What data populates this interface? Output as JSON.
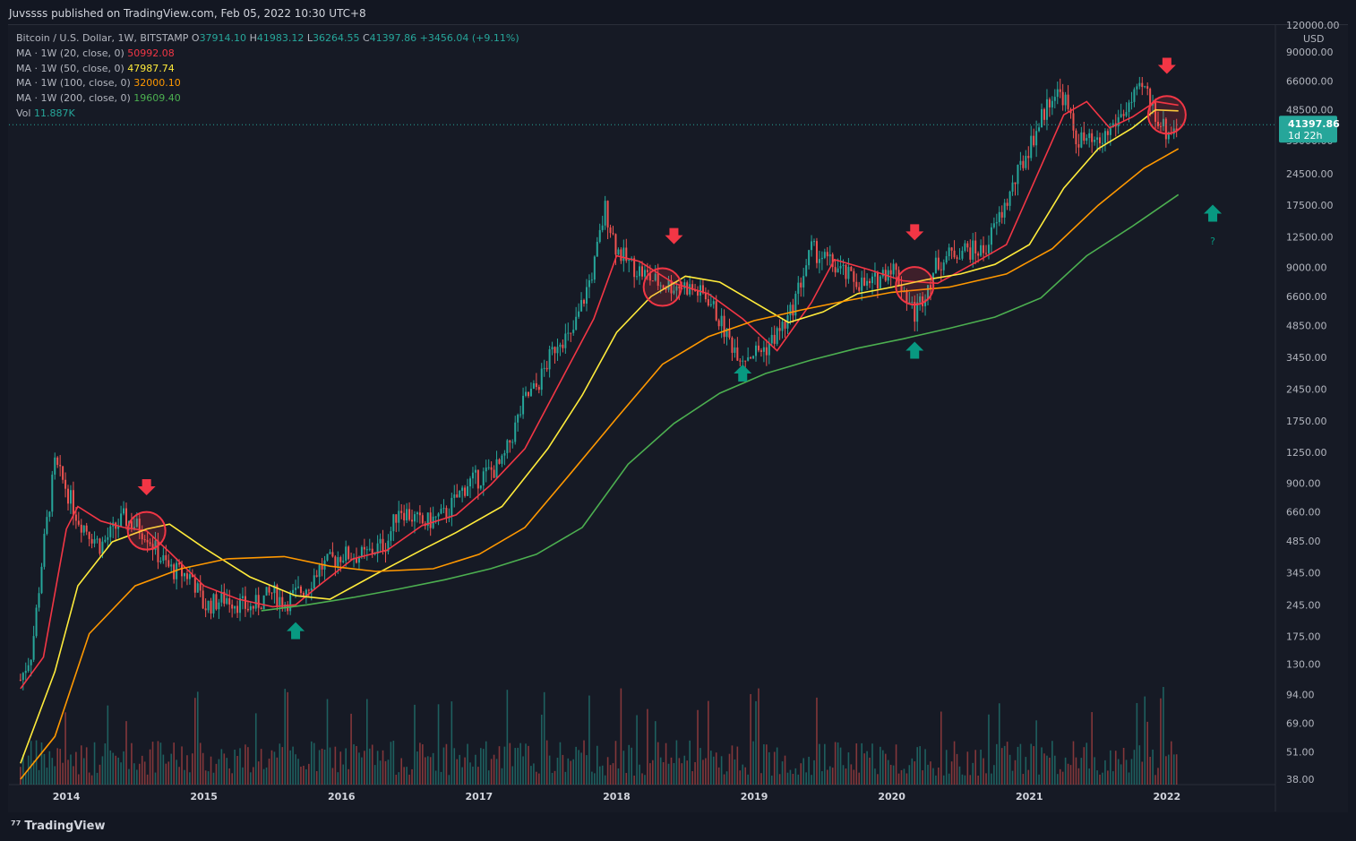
{
  "header": {
    "published": "Juvssss published on TradingView.com, Feb 05, 2022 10:30 UTC+8"
  },
  "footer": {
    "brand": "TradingView",
    "logo_icon": "tradingview-logo-icon"
  },
  "legend": {
    "symbol": "Bitcoin / U.S. Dollar, 1W, BITSTAMP",
    "ohlc": {
      "o_label": "O",
      "o": "37914.10",
      "h_label": "H",
      "h": "41983.12",
      "l_label": "L",
      "l": "36264.55",
      "c_label": "C",
      "c": "41397.86",
      "change": "+3456.04 (+9.11%)"
    },
    "ma20": {
      "label": "MA · 1W (20, close, 0)",
      "value": "50992.08",
      "color": "#f23645"
    },
    "ma50": {
      "label": "MA · 1W (50, close, 0)",
      "value": "47987.74",
      "color": "#ffeb3b"
    },
    "ma100": {
      "label": "MA · 1W (100, close, 0)",
      "value": "32000.10",
      "color": "#ff9800"
    },
    "ma200": {
      "label": "MA · 1W (200, close, 0)",
      "value": "19609.40",
      "color": "#4caf50"
    },
    "vol": {
      "label": "Vol",
      "value": "11.887K"
    }
  },
  "price_axis": {
    "currency": "USD",
    "last_price": "41397.86",
    "countdown": "1d 22h",
    "ticks": [
      "120000.00",
      "90000.00",
      "66000.00",
      "48500.00",
      "35000.00",
      "24500.00",
      "17500.00",
      "12500.00",
      "9000.00",
      "6600.00",
      "4850.00",
      "3450.00",
      "2450.00",
      "1750.00",
      "1250.00",
      "900.00",
      "660.00",
      "485.00",
      "345.00",
      "245.00",
      "175.00",
      "130.00",
      "94.00",
      "69.00",
      "51.00",
      "38.00"
    ]
  },
  "chart_data": {
    "type": "candlestick",
    "title": "Bitcoin / U.S. Dollar, 1W, BITSTAMP",
    "interval": "1W",
    "scale": "log",
    "ylim": [
      38,
      120000
    ],
    "xlim": [
      "2013-08",
      "2022-12"
    ],
    "x_tick_labels": [
      "2014",
      "2015",
      "2016",
      "2017",
      "2018",
      "2019",
      "2020",
      "2021",
      "2022"
    ],
    "grid": false,
    "up_color": "#26a69a",
    "down_color": "#ef5350",
    "price_path": [
      [
        "2013-09",
        110
      ],
      [
        "2013-10",
        150
      ],
      [
        "2013-11",
        450
      ],
      [
        "2013-12",
        1100
      ],
      [
        "2014-01",
        850
      ],
      [
        "2014-02",
        620
      ],
      [
        "2014-04",
        460
      ],
      [
        "2014-06",
        620
      ],
      [
        "2014-08",
        530
      ],
      [
        "2014-09",
        420
      ],
      [
        "2014-10",
        360
      ],
      [
        "2014-12",
        330
      ],
      [
        "2015-01",
        240
      ],
      [
        "2015-03",
        265
      ],
      [
        "2015-05",
        235
      ],
      [
        "2015-07",
        280
      ],
      [
        "2015-08",
        250
      ],
      [
        "2015-10",
        300
      ],
      [
        "2015-11",
        360
      ],
      [
        "2016-01",
        420
      ],
      [
        "2016-03",
        415
      ],
      [
        "2016-05",
        480
      ],
      [
        "2016-06",
        700
      ],
      [
        "2016-08",
        580
      ],
      [
        "2016-10",
        640
      ],
      [
        "2016-12",
        900
      ],
      [
        "2017-01",
        950
      ],
      [
        "2017-03",
        1100
      ],
      [
        "2017-05",
        2200
      ],
      [
        "2017-06",
        2500
      ],
      [
        "2017-08",
        4300
      ],
      [
        "2017-09",
        4200
      ],
      [
        "2017-11",
        9000
      ],
      [
        "2017-12",
        17000
      ],
      [
        "2018-01",
        11000
      ],
      [
        "2018-02",
        9500
      ],
      [
        "2018-04",
        8000
      ],
      [
        "2018-05",
        7500
      ],
      [
        "2018-07",
        7400
      ],
      [
        "2018-09",
        6500
      ],
      [
        "2018-11",
        4000
      ],
      [
        "2018-12",
        3500
      ],
      [
        "2019-02",
        3800
      ],
      [
        "2019-04",
        5200
      ],
      [
        "2019-06",
        11000
      ],
      [
        "2019-07",
        10000
      ],
      [
        "2019-09",
        8300
      ],
      [
        "2019-11",
        7300
      ],
      [
        "2020-01",
        9300
      ],
      [
        "2020-03",
        5500
      ],
      [
        "2020-05",
        9500
      ],
      [
        "2020-07",
        11000
      ],
      [
        "2020-09",
        10700
      ],
      [
        "2020-11",
        18000
      ],
      [
        "2021-01",
        33000
      ],
      [
        "2021-03",
        58000
      ],
      [
        "2021-04",
        57000
      ],
      [
        "2021-05",
        36000
      ],
      [
        "2021-07",
        33000
      ],
      [
        "2021-09",
        46000
      ],
      [
        "2021-11",
        62000
      ],
      [
        "2021-12",
        47000
      ],
      [
        "2022-01",
        38000
      ],
      [
        "2022-02",
        41397.86
      ]
    ],
    "series": [
      {
        "name": "MA · 1W (20, close, 0)",
        "color": "#f23645",
        "points": [
          [
            "2013-09",
            100
          ],
          [
            "2013-11",
            140
          ],
          [
            "2014-01",
            550
          ],
          [
            "2014-02",
            700
          ],
          [
            "2014-04",
            600
          ],
          [
            "2014-06",
            560
          ],
          [
            "2014-08",
            540
          ],
          [
            "2014-10",
            430
          ],
          [
            "2015-01",
            300
          ],
          [
            "2015-04",
            260
          ],
          [
            "2015-07",
            240
          ],
          [
            "2015-09",
            245
          ],
          [
            "2015-11",
            300
          ],
          [
            "2016-02",
            400
          ],
          [
            "2016-05",
            440
          ],
          [
            "2016-08",
            570
          ],
          [
            "2016-11",
            640
          ],
          [
            "2017-02",
            880
          ],
          [
            "2017-05",
            1300
          ],
          [
            "2017-08",
            2600
          ],
          [
            "2017-11",
            5200
          ],
          [
            "2018-01",
            10200
          ],
          [
            "2018-03",
            9600
          ],
          [
            "2018-06",
            7600
          ],
          [
            "2018-09",
            6800
          ],
          [
            "2018-12",
            5200
          ],
          [
            "2019-03",
            3700
          ],
          [
            "2019-06",
            6200
          ],
          [
            "2019-08",
            9800
          ],
          [
            "2019-11",
            8800
          ],
          [
            "2020-02",
            7800
          ],
          [
            "2020-05",
            7600
          ],
          [
            "2020-08",
            9300
          ],
          [
            "2020-11",
            11500
          ],
          [
            "2021-01",
            20000
          ],
          [
            "2021-04",
            46000
          ],
          [
            "2021-06",
            53000
          ],
          [
            "2021-08",
            40000
          ],
          [
            "2021-10",
            45000
          ],
          [
            "2021-12",
            53000
          ],
          [
            "2022-02",
            50992.08
          ]
        ]
      },
      {
        "name": "MA · 1W (50, close, 0)",
        "color": "#ffeb3b",
        "points": [
          [
            "2013-09",
            45
          ],
          [
            "2013-12",
            120
          ],
          [
            "2014-02",
            300
          ],
          [
            "2014-05",
            480
          ],
          [
            "2014-08",
            550
          ],
          [
            "2014-10",
            580
          ],
          [
            "2015-01",
            450
          ],
          [
            "2015-05",
            330
          ],
          [
            "2015-09",
            270
          ],
          [
            "2015-12",
            260
          ],
          [
            "2016-04",
            340
          ],
          [
            "2016-08",
            440
          ],
          [
            "2016-11",
            530
          ],
          [
            "2017-03",
            700
          ],
          [
            "2017-07",
            1300
          ],
          [
            "2017-10",
            2300
          ],
          [
            "2018-01",
            4500
          ],
          [
            "2018-04",
            6600
          ],
          [
            "2018-07",
            8200
          ],
          [
            "2018-10",
            7700
          ],
          [
            "2019-01",
            6200
          ],
          [
            "2019-04",
            5000
          ],
          [
            "2019-07",
            5600
          ],
          [
            "2019-10",
            6800
          ],
          [
            "2020-01",
            7300
          ],
          [
            "2020-04",
            7900
          ],
          [
            "2020-07",
            8400
          ],
          [
            "2020-10",
            9300
          ],
          [
            "2021-01",
            11500
          ],
          [
            "2021-04",
            21000
          ],
          [
            "2021-07",
            32000
          ],
          [
            "2021-10",
            40000
          ],
          [
            "2021-12",
            48500
          ],
          [
            "2022-02",
            47987.74
          ]
        ]
      },
      {
        "name": "MA · 1W (100, close, 0)",
        "color": "#ff9800",
        "points": [
          [
            "2013-09",
            38
          ],
          [
            "2013-12",
            60
          ],
          [
            "2014-03",
            180
          ],
          [
            "2014-07",
            300
          ],
          [
            "2014-11",
            360
          ],
          [
            "2015-03",
            400
          ],
          [
            "2015-08",
            410
          ],
          [
            "2015-12",
            370
          ],
          [
            "2016-04",
            350
          ],
          [
            "2016-09",
            360
          ],
          [
            "2017-01",
            420
          ],
          [
            "2017-05",
            560
          ],
          [
            "2017-09",
            1000
          ],
          [
            "2018-01",
            1800
          ],
          [
            "2018-05",
            3200
          ],
          [
            "2018-09",
            4300
          ],
          [
            "2019-01",
            5100
          ],
          [
            "2019-05",
            5700
          ],
          [
            "2019-09",
            6300
          ],
          [
            "2020-01",
            6900
          ],
          [
            "2020-06",
            7300
          ],
          [
            "2020-11",
            8400
          ],
          [
            "2021-03",
            11000
          ],
          [
            "2021-07",
            17500
          ],
          [
            "2021-11",
            26000
          ],
          [
            "2022-02",
            32000.1
          ]
        ]
      },
      {
        "name": "MA · 1W (200, close, 0)",
        "color": "#4caf50",
        "points": [
          [
            "2015-06",
            230
          ],
          [
            "2015-10",
            245
          ],
          [
            "2016-02",
            265
          ],
          [
            "2016-06",
            290
          ],
          [
            "2016-10",
            320
          ],
          [
            "2017-02",
            360
          ],
          [
            "2017-06",
            420
          ],
          [
            "2017-10",
            560
          ],
          [
            "2018-02",
            1100
          ],
          [
            "2018-06",
            1700
          ],
          [
            "2018-10",
            2350
          ],
          [
            "2019-02",
            2900
          ],
          [
            "2019-06",
            3350
          ],
          [
            "2019-10",
            3800
          ],
          [
            "2020-02",
            4200
          ],
          [
            "2020-06",
            4700
          ],
          [
            "2020-10",
            5300
          ],
          [
            "2021-02",
            6500
          ],
          [
            "2021-06",
            10200
          ],
          [
            "2021-10",
            14000
          ],
          [
            "2022-02",
            19609.4
          ]
        ]
      }
    ],
    "annotations": [
      {
        "type": "down-arrow",
        "date": "2014-08",
        "price": 820,
        "color": "#f23645"
      },
      {
        "type": "circle",
        "date": "2014-08",
        "price": 540,
        "color": "#f23645"
      },
      {
        "type": "up-arrow",
        "date": "2015-09",
        "price": 185,
        "color": "#089981"
      },
      {
        "type": "down-arrow",
        "date": "2018-06",
        "price": 12000,
        "color": "#f23645"
      },
      {
        "type": "circle",
        "date": "2018-05",
        "price": 7300,
        "color": "#f23645"
      },
      {
        "type": "up-arrow",
        "date": "2018-12",
        "price": 2900,
        "color": "#089981"
      },
      {
        "type": "down-arrow",
        "date": "2020-03",
        "price": 12500,
        "color": "#f23645"
      },
      {
        "type": "circle",
        "date": "2020-03",
        "price": 7400,
        "color": "#f23645"
      },
      {
        "type": "up-arrow",
        "date": "2020-03",
        "price": 3700,
        "color": "#089981"
      },
      {
        "type": "down-arrow",
        "date": "2022-01",
        "price": 74000,
        "color": "#f23645"
      },
      {
        "type": "circle",
        "date": "2022-01",
        "price": 46000,
        "color": "#f23645"
      },
      {
        "type": "up-arrow",
        "date": "2022-05",
        "price": 16000,
        "color": "#089981"
      },
      {
        "type": "text",
        "text": "?",
        "date": "2022-05",
        "price": 11500,
        "color": "#089981"
      }
    ],
    "volume": {
      "label": "Vol",
      "last": "11.887K"
    }
  }
}
